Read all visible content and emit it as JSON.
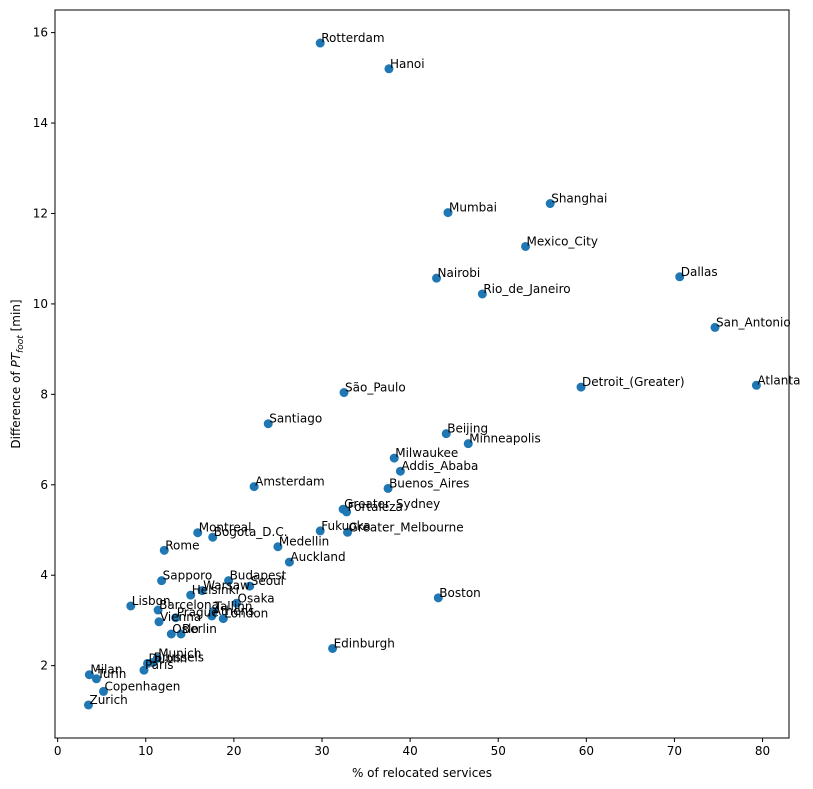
{
  "chart_data": {
    "type": "scatter",
    "xlabel": "% of relocated services",
    "ylabel": {
      "prefix": "Difference of ",
      "var": "PT",
      "sub": "foot",
      "suffix": " [min]"
    },
    "xlim": [
      -0.3,
      83
    ],
    "ylim": [
      0.4,
      16.5
    ],
    "xticks": [
      0,
      10,
      20,
      30,
      40,
      50,
      60,
      70,
      80
    ],
    "yticks": [
      2,
      4,
      6,
      8,
      10,
      12,
      14,
      16
    ],
    "marker_color": "#1f77b4",
    "points": [
      {
        "label": "Rotterdam",
        "x": 29.8,
        "y": 15.77
      },
      {
        "label": "Hanoi",
        "x": 37.6,
        "y": 15.2
      },
      {
        "label": "Shanghai",
        "x": 55.9,
        "y": 12.22
      },
      {
        "label": "Mumbai",
        "x": 44.3,
        "y": 12.02
      },
      {
        "label": "Mexico_City",
        "x": 53.1,
        "y": 11.27
      },
      {
        "label": "Dallas",
        "x": 70.6,
        "y": 10.6
      },
      {
        "label": "Nairobi",
        "x": 43.0,
        "y": 10.57
      },
      {
        "label": "Rio_de_Janeiro",
        "x": 48.2,
        "y": 10.22
      },
      {
        "label": "San_Antonio",
        "x": 74.6,
        "y": 9.48
      },
      {
        "label": "Atlanta",
        "x": 79.3,
        "y": 8.2
      },
      {
        "label": "Detroit_(Greater)",
        "x": 59.4,
        "y": 8.16
      },
      {
        "label": "São_Paulo",
        "x": 32.5,
        "y": 8.04
      },
      {
        "label": "Santiago",
        "x": 23.9,
        "y": 7.35
      },
      {
        "label": "Beijing",
        "x": 44.1,
        "y": 7.13
      },
      {
        "label": "Minneapolis",
        "x": 46.6,
        "y": 6.91
      },
      {
        "label": "Milwaukee",
        "x": 38.2,
        "y": 6.59
      },
      {
        "label": "Addis_Ababa",
        "x": 38.9,
        "y": 6.3
      },
      {
        "label": "Amsterdam",
        "x": 22.3,
        "y": 5.96
      },
      {
        "label": "Buenos_Aires",
        "x": 37.5,
        "y": 5.92
      },
      {
        "label": "Greater_Sydney",
        "x": 32.4,
        "y": 5.46
      },
      {
        "label": "Fortaleza",
        "x": 32.8,
        "y": 5.4
      },
      {
        "label": "Fukuoka",
        "x": 29.8,
        "y": 4.98
      },
      {
        "label": "Greater_Melbourne",
        "x": 32.9,
        "y": 4.95
      },
      {
        "label": "Montreal",
        "x": 15.9,
        "y": 4.94
      },
      {
        "label": "Bogota_D.C.",
        "x": 17.6,
        "y": 4.84
      },
      {
        "label": "Medellin",
        "x": 25.0,
        "y": 4.63
      },
      {
        "label": "Rome",
        "x": 12.1,
        "y": 4.55
      },
      {
        "label": "Auckland",
        "x": 26.3,
        "y": 4.29
      },
      {
        "label": "Sapporo",
        "x": 11.8,
        "y": 3.88
      },
      {
        "label": "Budapest",
        "x": 19.4,
        "y": 3.88
      },
      {
        "label": "Seoul",
        "x": 21.8,
        "y": 3.76
      },
      {
        "label": "Warsaw",
        "x": 16.4,
        "y": 3.66
      },
      {
        "label": "Helsinki",
        "x": 15.1,
        "y": 3.56
      },
      {
        "label": "Boston",
        "x": 43.2,
        "y": 3.5
      },
      {
        "label": "Osaka",
        "x": 20.3,
        "y": 3.38
      },
      {
        "label": "Lisbon",
        "x": 8.3,
        "y": 3.32
      },
      {
        "label": "Barcelona",
        "x": 11.4,
        "y": 3.23
      },
      {
        "label": "Tallinn",
        "x": 17.7,
        "y": 3.2
      },
      {
        "label": "Prague",
        "x": 13.4,
        "y": 3.06
      },
      {
        "label": "Athens",
        "x": 17.5,
        "y": 3.1
      },
      {
        "label": "London",
        "x": 18.8,
        "y": 3.04
      },
      {
        "label": "Vienna",
        "x": 11.5,
        "y": 2.97
      },
      {
        "label": "Oslo",
        "x": 12.9,
        "y": 2.7
      },
      {
        "label": "Berlin",
        "x": 14.0,
        "y": 2.7
      },
      {
        "label": "Edinburgh",
        "x": 31.2,
        "y": 2.38
      },
      {
        "label": "Munich",
        "x": 11.3,
        "y": 2.16
      },
      {
        "label": "Dublin",
        "x": 10.2,
        "y": 2.05
      },
      {
        "label": "Brussels",
        "x": 10.8,
        "y": 2.07
      },
      {
        "label": "Paris",
        "x": 9.8,
        "y": 1.9
      },
      {
        "label": "Milan",
        "x": 3.6,
        "y": 1.8
      },
      {
        "label": "Turin",
        "x": 4.4,
        "y": 1.71
      },
      {
        "label": "Copenhagen",
        "x": 5.2,
        "y": 1.43
      },
      {
        "label": "Zurich",
        "x": 3.5,
        "y": 1.13
      }
    ]
  }
}
